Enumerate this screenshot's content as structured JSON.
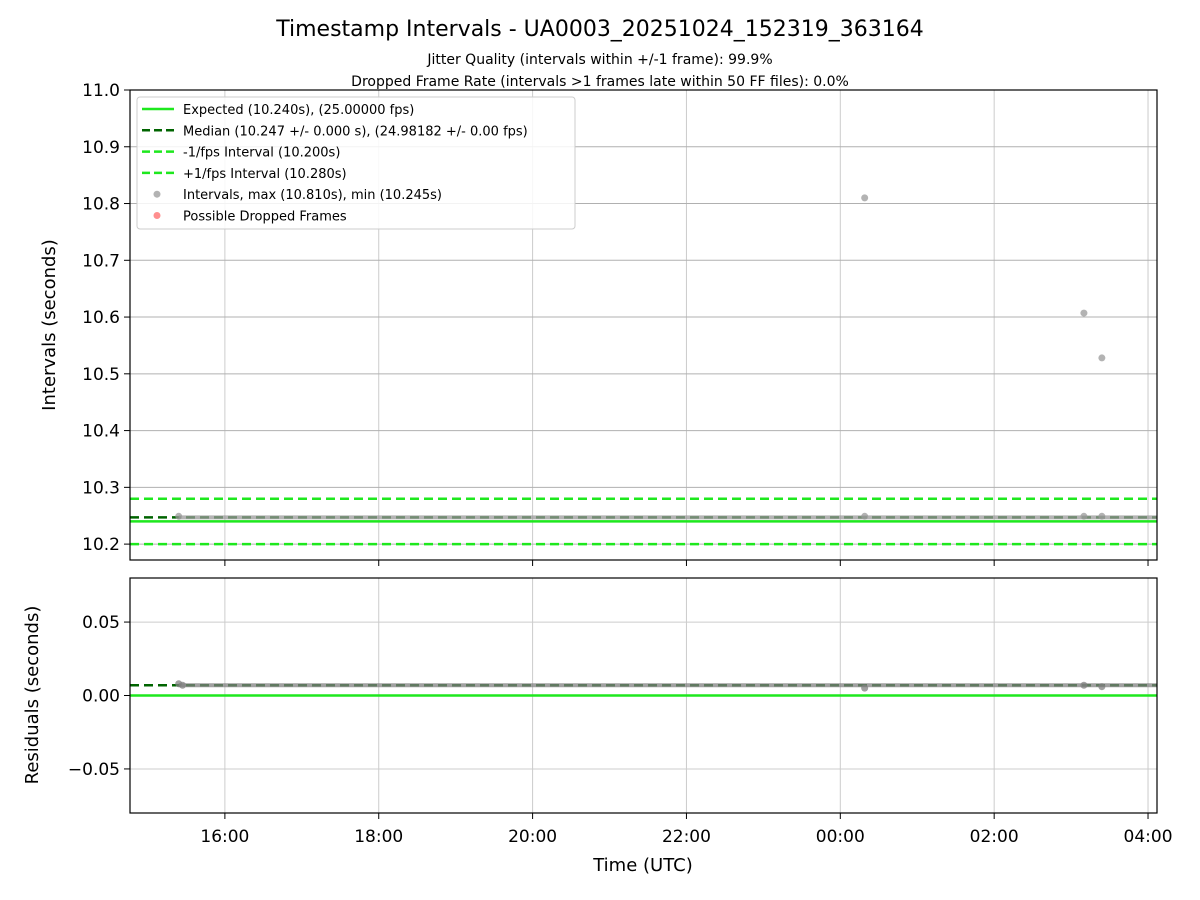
{
  "chart_data": {
    "title": "Timestamp Intervals - UA0003_20251024_152319_363164",
    "subtitle_lines": [
      "Jitter Quality (intervals within +/-1 frame): 99.9%",
      "Dropped Frame Rate (intervals >1 frames late within 50 FF files): 0.0%"
    ],
    "xlabel": "Time (UTC)",
    "x_axis": {
      "type": "time",
      "xlim": [
        "2025-10-24T14:46:00Z",
        "2025-10-25T04:07:00Z"
      ],
      "ticks": [
        {
          "value": "2025-10-24T16:00:00Z",
          "label": "16:00"
        },
        {
          "value": "2025-10-24T18:00:00Z",
          "label": "18:00"
        },
        {
          "value": "2025-10-24T20:00:00Z",
          "label": "20:00"
        },
        {
          "value": "2025-10-24T22:00:00Z",
          "label": "22:00"
        },
        {
          "value": "2025-10-25T00:00:00Z",
          "label": "00:00"
        },
        {
          "value": "2025-10-25T02:00:00Z",
          "label": "02:00"
        },
        {
          "value": "2025-10-25T04:00:00Z",
          "label": "04:00"
        }
      ],
      "grid": true
    },
    "panels": [
      {
        "id": "intervals",
        "type": "scatter",
        "ylabel": "Intervals (seconds)",
        "ylim": [
          10.172,
          11.0
        ],
        "yticks": [
          {
            "value": 11.0,
            "label": "11.0"
          },
          {
            "value": 10.9,
            "label": "10.9"
          },
          {
            "value": 10.8,
            "label": "10.8"
          },
          {
            "value": 10.7,
            "label": "10.7"
          },
          {
            "value": 10.6,
            "label": "10.6"
          },
          {
            "value": 10.5,
            "label": "10.5"
          },
          {
            "value": 10.4,
            "label": "10.4"
          },
          {
            "value": 10.3,
            "label": "10.3"
          },
          {
            "value": 10.2,
            "label": "10.2"
          }
        ],
        "grid": "y-and-x",
        "legend_position": "upper-left",
        "reference_lines": [
          {
            "name": "Expected (10.240s), (25.00000 fps)",
            "y": 10.24,
            "color": "#1ee81e",
            "style": "solid"
          },
          {
            "name": "Median (10.247 +/- 0.000 s), (24.98182 +/- 0.00 fps)",
            "y": 10.247,
            "color": "#006400",
            "style": "dashed"
          },
          {
            "name": "-1/fps Interval (10.200s)",
            "y": 10.2,
            "color": "#1ee81e",
            "style": "dashed"
          },
          {
            "name": "+1/fps Interval (10.280s)",
            "y": 10.28,
            "color": "#1ee81e",
            "style": "dashed"
          }
        ],
        "series": [
          {
            "name": "Intervals, max (10.810s), min (10.245s)",
            "color": "#999999",
            "marker": "circle",
            "baseline": {
              "t_start": "2025-10-24T15:24:00Z",
              "t_end": "2025-10-25T04:07:00Z",
              "y": 10.247
            },
            "points": [
              {
                "t": "2025-10-24T15:24:00Z",
                "y": 10.249
              },
              {
                "t": "2025-10-25T00:19:00Z",
                "y": 10.81
              },
              {
                "t": "2025-10-25T00:19:00Z",
                "y": 10.249
              },
              {
                "t": "2025-10-25T03:10:00Z",
                "y": 10.607
              },
              {
                "t": "2025-10-25T03:10:00Z",
                "y": 10.249
              },
              {
                "t": "2025-10-25T03:24:00Z",
                "y": 10.528
              },
              {
                "t": "2025-10-25T03:24:00Z",
                "y": 10.249
              }
            ]
          },
          {
            "name": "Possible Dropped Frames",
            "color": "#ff6a6a",
            "marker": "circle",
            "points": []
          }
        ]
      },
      {
        "id": "residuals",
        "type": "scatter",
        "ylabel": "Residuals (seconds)",
        "ylim": [
          -0.08,
          0.08
        ],
        "yticks": [
          {
            "value": 0.05,
            "label": "0.05"
          },
          {
            "value": 0.0,
            "label": "0.00"
          },
          {
            "value": -0.05,
            "label": "−0.05"
          }
        ],
        "grid": "y-and-x",
        "reference_lines": [
          {
            "y": 0.0,
            "color": "#1ee81e",
            "style": "solid"
          },
          {
            "y": 0.007,
            "color": "#006400",
            "style": "dashed"
          }
        ],
        "series": [
          {
            "color": "#808080",
            "marker": "circle",
            "baseline": {
              "t_start": "2025-10-24T15:24:00Z",
              "t_end": "2025-10-25T04:07:00Z",
              "y": 0.007
            },
            "points": [
              {
                "t": "2025-10-24T15:24:00Z",
                "y": 0.008
              },
              {
                "t": "2025-10-24T15:27:00Z",
                "y": 0.007
              },
              {
                "t": "2025-10-25T00:19:00Z",
                "y": 0.005
              },
              {
                "t": "2025-10-25T03:10:00Z",
                "y": 0.007
              },
              {
                "t": "2025-10-25T03:24:00Z",
                "y": 0.006
              }
            ]
          }
        ]
      }
    ]
  }
}
